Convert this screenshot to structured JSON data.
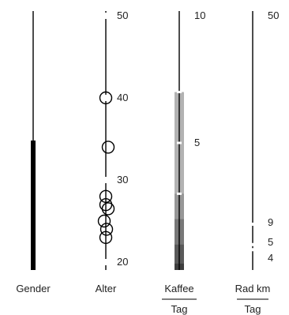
{
  "chart_data": [
    {
      "type": "bar",
      "axis": "gender",
      "label": "Gender",
      "fill_fraction": 0.5,
      "bar_color": "#000000"
    },
    {
      "type": "scatter",
      "axis": "age",
      "label": "Alter",
      "ticks": [
        20,
        30,
        40,
        50
      ],
      "ylim": [
        19,
        50
      ],
      "values": [
        40,
        34,
        28,
        27,
        26.5,
        25,
        24,
        23
      ]
    },
    {
      "type": "heatmap",
      "axis": "coffee",
      "label_top": "Kaffee",
      "label_bottom": "Tag",
      "ticks": [
        5,
        10
      ],
      "ylim": [
        0,
        10
      ],
      "bands": [
        {
          "from": 0,
          "to": 7,
          "opacity": 0.3
        },
        {
          "from": 0,
          "to": 3,
          "opacity": 0.15
        },
        {
          "from": 0,
          "to": 2,
          "opacity": 0.2
        },
        {
          "from": 0,
          "to": 1,
          "opacity": 0.25
        },
        {
          "from": 0,
          "to": 0.25,
          "opacity": 0.3
        }
      ],
      "marks": [
        5,
        7,
        3
      ],
      "band_color": "#000000"
    },
    {
      "type": "scatter",
      "axis": "bike",
      "label_top": "Rad km",
      "label_bottom": "Tag",
      "ticks": [
        4,
        5,
        9,
        50
      ],
      "ylim": [
        0,
        50
      ],
      "values": [
        4,
        5,
        9
      ]
    }
  ]
}
